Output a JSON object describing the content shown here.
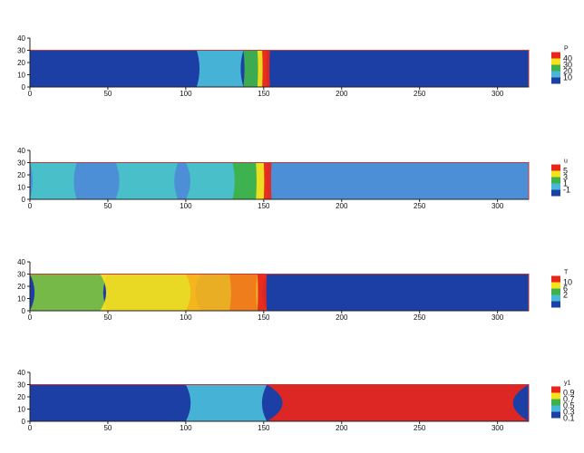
{
  "chart_data": [
    {
      "type": "heatmap",
      "variable": "P",
      "xlim": [
        0,
        320
      ],
      "ylim": [
        0,
        40
      ],
      "domain_height": 30,
      "x_ticks": [
        "0",
        "50",
        "100",
        "150",
        "200",
        "250",
        "300"
      ],
      "y_ticks": [
        "0",
        "10",
        "20",
        "30",
        "40"
      ],
      "legend": {
        "title": "P",
        "labels": [
          "40",
          "30",
          "20",
          "10"
        ],
        "colors": [
          "#e8261c",
          "#f4e21c",
          "#3fb14a",
          "#49b8d8",
          "#1c3fa5"
        ]
      },
      "background_color": "#1c3fa5",
      "features": [
        {
          "x_start": 107,
          "x_end": 137,
          "color": "#49b8d8"
        },
        {
          "x_start": 137,
          "x_end": 148,
          "color": "#3fb14a"
        },
        {
          "x_start": 146,
          "x_end": 152,
          "color": "#f4e21c"
        },
        {
          "x_start": 149,
          "x_end": 154,
          "color": "#e8261c"
        }
      ]
    },
    {
      "type": "heatmap",
      "variable": "u",
      "xlim": [
        0,
        320
      ],
      "ylim": [
        0,
        40
      ],
      "domain_height": 30,
      "x_ticks": [
        "0",
        "50",
        "100",
        "150",
        "200",
        "250",
        "300"
      ],
      "y_ticks": [
        "0",
        "10",
        "20",
        "30",
        "40"
      ],
      "legend": {
        "title": "u",
        "labels": [
          "5",
          "3",
          "1",
          "-1"
        ],
        "colors": [
          "#e8261c",
          "#f4e21c",
          "#3fb14a",
          "#49b8d8",
          "#1c3fa5"
        ]
      },
      "background_color": "#4d8fd6",
      "features": [
        {
          "x_start": 0,
          "x_end": 30,
          "color": "#49c3c8"
        },
        {
          "x_start": 55,
          "x_end": 95,
          "color": "#49c3c8"
        },
        {
          "x_start": 100,
          "x_end": 150,
          "color": "#49c3c8"
        },
        {
          "x_start": 130,
          "x_end": 152,
          "color": "#3fb14a"
        },
        {
          "x_start": 145,
          "x_end": 152,
          "color": "#f4e21c"
        },
        {
          "x_start": 150,
          "x_end": 155,
          "color": "#e8261c"
        }
      ]
    },
    {
      "type": "heatmap",
      "variable": "T",
      "xlim": [
        0,
        320
      ],
      "ylim": [
        0,
        40
      ],
      "domain_height": 30,
      "x_ticks": [
        "0",
        "50",
        "100",
        "150",
        "200",
        "250",
        "300"
      ],
      "y_ticks": [
        "0",
        "10",
        "20",
        "30",
        "40"
      ],
      "legend": {
        "title": "T",
        "labels": [
          "10",
          "6",
          "2"
        ],
        "colors": [
          "#e8261c",
          "#f4e21c",
          "#3fb14a",
          "#49b8d8",
          "#1c3fa5"
        ]
      },
      "background_color": "#1c3fa5",
      "features": [
        {
          "x_start": 0,
          "x_end": 50,
          "color": "#7bc043"
        },
        {
          "x_start": 45,
          "x_end": 110,
          "color": "#f4e21c"
        },
        {
          "x_start": 100,
          "x_end": 152,
          "color": "#f4b41c"
        },
        {
          "x_start": 128,
          "x_end": 146,
          "color": "#f07a1c"
        },
        {
          "x_start": 146,
          "x_end": 152,
          "color": "#e8261c"
        }
      ]
    },
    {
      "type": "heatmap",
      "variable": "y1",
      "xlim": [
        0,
        320
      ],
      "ylim": [
        0,
        40
      ],
      "domain_height": 30,
      "x_ticks": [
        "0",
        "50",
        "100",
        "150",
        "200",
        "250",
        "300"
      ],
      "y_ticks": [
        "0",
        "10",
        "20",
        "30",
        "40"
      ],
      "legend": {
        "title": "y1",
        "labels": [
          "0.9",
          "0.7",
          "0.5",
          "0.3",
          "0.1"
        ],
        "colors": [
          "#e8261c",
          "#f4e21c",
          "#3fb14a",
          "#49b8d8",
          "#1c3fa5"
        ]
      },
      "background_color": "#1c3fa5",
      "features": [
        {
          "x_start": 100,
          "x_end": 152,
          "color": "#49b8d8"
        },
        {
          "x_start": 152,
          "x_end": 320,
          "color": "#e8261c"
        }
      ]
    }
  ]
}
